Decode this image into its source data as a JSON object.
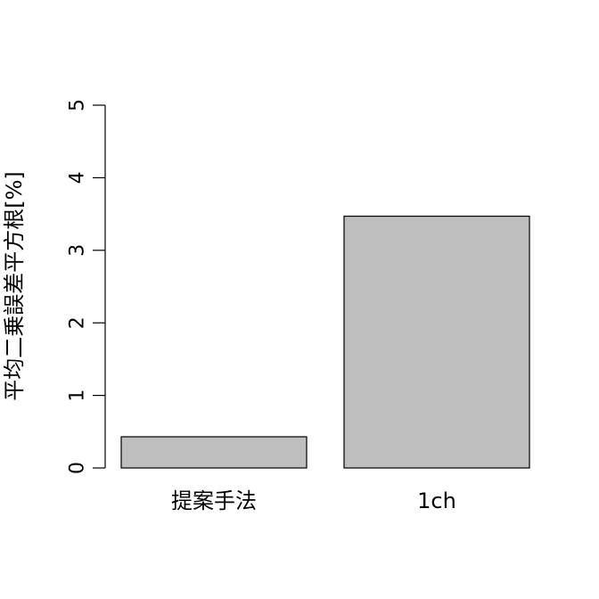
{
  "chart_data": {
    "type": "bar",
    "title": "",
    "xlabel": "",
    "ylabel": "平均二乗誤差平方根[%]",
    "categories": [
      "提案手法",
      "1ch"
    ],
    "values": [
      0.43,
      3.47
    ],
    "ylim": [
      0,
      5
    ],
    "yticks": [
      0,
      1,
      2,
      3,
      4,
      5
    ],
    "grid": false,
    "legend": "none",
    "bar_fill": "#bebebe",
    "bar_stroke": "#000000"
  }
}
